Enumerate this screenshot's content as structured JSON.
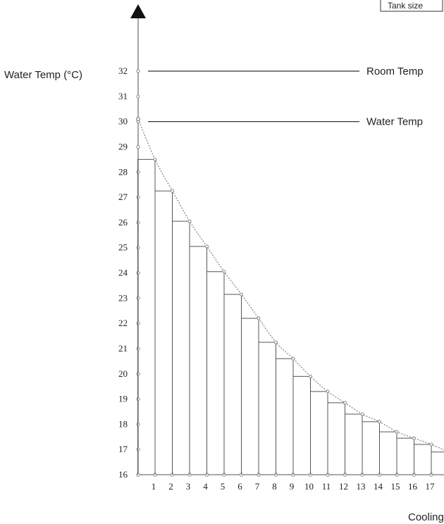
{
  "chart_data": {
    "type": "bar",
    "ylabel": "Water Temp (°C)",
    "xlabel": "Cooling Ti",
    "legend_box_label": "Tank size",
    "ylim": [
      16,
      33
    ],
    "y_ticks": [
      16,
      17,
      18,
      19,
      20,
      21,
      22,
      23,
      24,
      25,
      26,
      27,
      28,
      29,
      30,
      31,
      32
    ],
    "categories": [
      "1",
      "2",
      "3",
      "4",
      "5",
      "6",
      "7",
      "8",
      "9",
      "10",
      "11",
      "12",
      "13",
      "14",
      "15",
      "16",
      "17",
      "1"
    ],
    "values": [
      28.5,
      27.25,
      26.05,
      25.05,
      24.05,
      23.15,
      22.2,
      21.25,
      20.6,
      19.9,
      19.3,
      18.85,
      18.4,
      18.1,
      17.7,
      17.45,
      17.2,
      16.9
    ],
    "curve_start": 30.1,
    "annotations": [
      {
        "label": "Room Temp",
        "y": 32
      },
      {
        "label": "Water Temp",
        "y": 30
      }
    ],
    "grid": false
  }
}
